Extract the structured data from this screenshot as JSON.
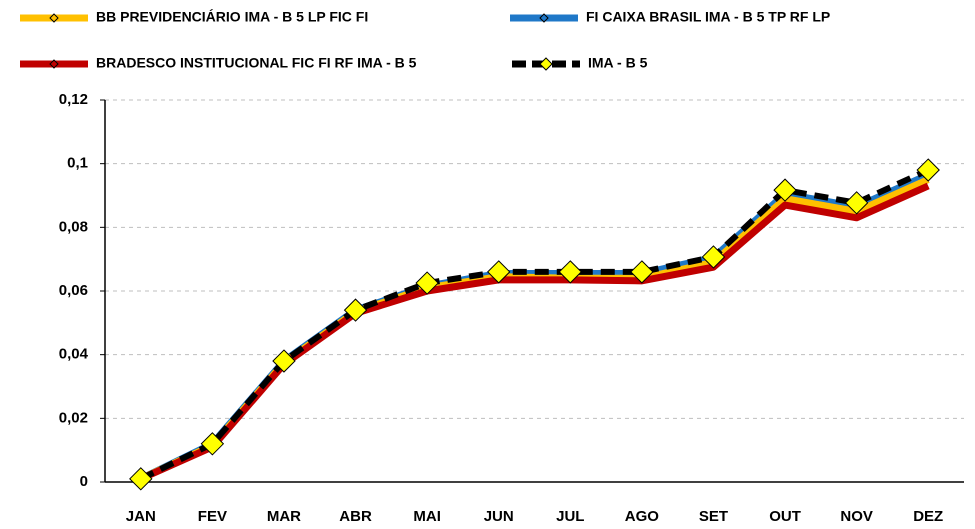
{
  "chart_data": {
    "type": "line",
    "categories": [
      "JAN",
      "FEV",
      "MAR",
      "ABR",
      "MAI",
      "JUN",
      "JUL",
      "AGO",
      "SET",
      "OUT",
      "NOV",
      "DEZ"
    ],
    "series": [
      {
        "name": "FI CAIXA BRASIL IMA - B 5 TP RF LP",
        "color": "#1f78c8",
        "values": [
          0.001,
          0.012,
          0.038,
          0.054,
          0.0615,
          0.0655,
          0.0655,
          0.0655,
          0.0705,
          0.0905,
          0.0865,
          0.0965
        ]
      },
      {
        "name": "BB PREVIDENCIÁRIO IMA - B 5 LP FIC FI",
        "color": "#ffc000",
        "values": [
          0.001,
          0.0115,
          0.0375,
          0.0535,
          0.061,
          0.0645,
          0.064,
          0.064,
          0.069,
          0.089,
          0.085,
          0.095
        ]
      },
      {
        "name": "BRADESCO INSTITUCIONAL FIC FI RF IMA - B 5",
        "color": "#c00000",
        "values": [
          0.001,
          0.011,
          0.037,
          0.053,
          0.06,
          0.0635,
          0.0635,
          0.0632,
          0.0675,
          0.087,
          0.083,
          0.093
        ]
      },
      {
        "name": "IMA - B 5",
        "color": "#000000",
        "dashed": true,
        "marker": "diamond",
        "marker_color": "#ffff00",
        "values": [
          0.001,
          0.012,
          0.038,
          0.054,
          0.0625,
          0.066,
          0.066,
          0.066,
          0.0707,
          0.0917,
          0.0877,
          0.098
        ]
      }
    ],
    "legend_order": [
      1,
      0,
      2,
      3
    ],
    "ylim": [
      0,
      0.12
    ],
    "yticks": [
      0,
      {
        "value": 0.02,
        "label": "0,02"
      },
      {
        "value": 0.04,
        "label": "0,04"
      },
      {
        "value": 0.06,
        "label": "0,06"
      },
      {
        "value": 0.08,
        "label": "0,08"
      },
      {
        "value": 0.1,
        "label": "0,1"
      },
      {
        "value": 0.12,
        "label": "0,12"
      }
    ],
    "grid": true
  }
}
